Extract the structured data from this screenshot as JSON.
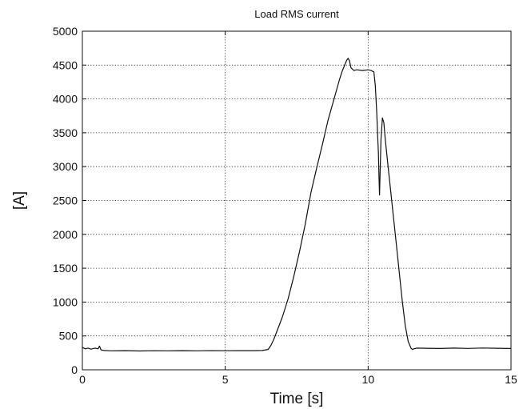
{
  "chart_data": {
    "type": "line",
    "title": "Load RMS current",
    "xlabel": "Time [s]",
    "ylabel": "[A]",
    "xlim": [
      0,
      15
    ],
    "ylim": [
      0,
      5000
    ],
    "xticks": [
      0,
      5,
      10,
      15
    ],
    "yticks": [
      0,
      500,
      1000,
      1500,
      2000,
      2500,
      3000,
      3500,
      4000,
      4500,
      5000
    ],
    "grid": true,
    "series": [
      {
        "x": [
          0,
          0.1,
          0.2,
          0.3,
          0.45,
          0.55,
          0.6,
          0.65,
          0.75,
          1.0,
          1.5,
          2.0,
          2.5,
          3.0,
          3.5,
          4.0,
          4.5,
          5.0,
          5.5,
          6.0,
          6.3,
          6.5,
          6.6,
          6.7,
          6.8,
          7.0,
          7.2,
          7.4,
          7.6,
          7.8,
          8.0,
          8.2,
          8.4,
          8.6,
          8.8,
          9.0,
          9.1,
          9.2,
          9.25,
          9.3,
          9.35,
          9.4,
          9.5,
          9.6,
          9.8,
          10.0,
          10.1,
          10.2,
          10.25,
          10.3,
          10.33,
          10.36,
          10.38,
          10.4,
          10.45,
          10.5,
          10.55,
          10.6,
          10.7,
          10.8,
          10.9,
          11.0,
          11.1,
          11.2,
          11.3,
          11.4,
          11.5,
          11.55,
          11.6,
          11.7,
          12.0,
          12.5,
          13.0,
          13.5,
          14.0,
          14.5,
          15.0
        ],
        "values": [
          330,
          310,
          320,
          305,
          320,
          310,
          350,
          295,
          285,
          280,
          282,
          278,
          281,
          280,
          283,
          280,
          282,
          281,
          283,
          282,
          285,
          300,
          360,
          450,
          560,
          780,
          1050,
          1380,
          1750,
          2150,
          2620,
          2980,
          3330,
          3690,
          3990,
          4290,
          4420,
          4520,
          4570,
          4600,
          4560,
          4460,
          4420,
          4430,
          4420,
          4430,
          4420,
          4400,
          4200,
          3800,
          3500,
          3200,
          2850,
          2580,
          3400,
          3720,
          3650,
          3400,
          3000,
          2600,
          2200,
          1800,
          1400,
          1000,
          650,
          420,
          320,
          300,
          310,
          320,
          318,
          315,
          320,
          316,
          322,
          318,
          315
        ]
      }
    ]
  }
}
